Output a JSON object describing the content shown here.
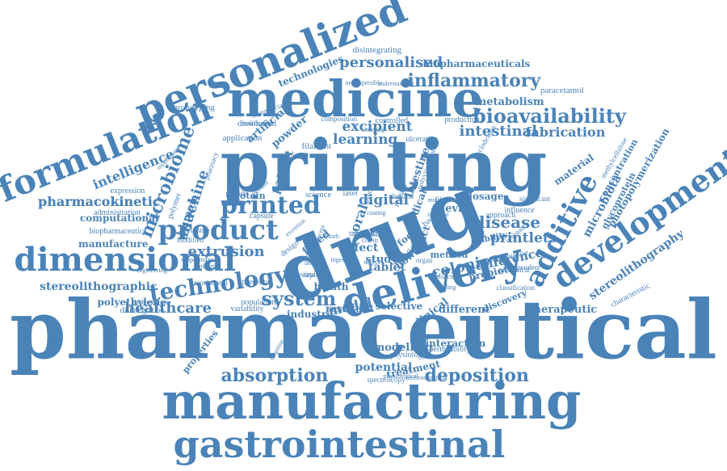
{
  "color": "#4a83b8",
  "words": [
    {
      "text": "pharmaceutical"
    },
    {
      "text": "manufacturing"
    },
    {
      "text": "gastrointestinal"
    },
    {
      "text": "printing"
    },
    {
      "text": "drug"
    },
    {
      "text": "medicine"
    },
    {
      "text": "delivery"
    },
    {
      "text": "personalized"
    },
    {
      "text": "formulation"
    },
    {
      "text": "dimensional"
    },
    {
      "text": "product"
    },
    {
      "text": "development"
    },
    {
      "text": "additive"
    },
    {
      "text": "printed"
    },
    {
      "text": "technology"
    },
    {
      "text": "bioavailability"
    },
    {
      "text": "inflammatory"
    },
    {
      "text": "absorption"
    },
    {
      "text": "deposition"
    },
    {
      "text": "system"
    },
    {
      "text": "disease"
    },
    {
      "text": "healthcare"
    },
    {
      "text": "extrusion"
    },
    {
      "text": "printlets"
    },
    {
      "text": "microbiome"
    },
    {
      "text": "personalised"
    },
    {
      "text": "intestinal"
    },
    {
      "text": "fabrication"
    },
    {
      "text": "metabolism"
    },
    {
      "text": "stereolithographic"
    },
    {
      "text": "stereolithography"
    },
    {
      "text": "pharmacokinetic"
    },
    {
      "text": "polyethylene"
    },
    {
      "text": "biopharmaceuticals"
    },
    {
      "text": "excipient"
    },
    {
      "text": "learning"
    },
    {
      "text": "intelligence"
    },
    {
      "text": "machine"
    },
    {
      "text": "digital"
    },
    {
      "text": "colonic"
    },
    {
      "text": "difference"
    },
    {
      "text": "device"
    },
    {
      "text": "material"
    },
    {
      "text": "microbiota"
    },
    {
      "text": "photopolymerization"
    },
    {
      "text": "concentration"
    },
    {
      "text": "glycoprotein"
    },
    {
      "text": "technologies"
    },
    {
      "text": "manufacture"
    },
    {
      "text": "computational"
    },
    {
      "text": "administration"
    },
    {
      "text": "expression"
    },
    {
      "text": "biopharmaceutics"
    },
    {
      "text": "prototyping"
    },
    {
      "text": "dissolution"
    },
    {
      "text": "filament"
    },
    {
      "text": "ulcerative"
    },
    {
      "text": "controlled"
    },
    {
      "text": "paracetamol"
    },
    {
      "text": "effect"
    },
    {
      "text": "tablet"
    },
    {
      "text": "modelling"
    },
    {
      "text": "interaction"
    },
    {
      "text": "potential"
    },
    {
      "text": "treatment"
    },
    {
      "text": "different"
    },
    {
      "text": "therapeutic"
    },
    {
      "text": "industry"
    },
    {
      "text": "model"
    },
    {
      "text": "clinical"
    },
    {
      "text": "study"
    },
    {
      "text": "health"
    },
    {
      "text": "properties"
    },
    {
      "text": "pharmacokinetic"
    },
    {
      "text": "dosage"
    },
    {
      "text": "probiotic"
    },
    {
      "text": "method"
    },
    {
      "text": "discovery"
    },
    {
      "text": "disintegrating"
    },
    {
      "text": "protein"
    },
    {
      "text": "capsule"
    },
    {
      "text": "science"
    },
    {
      "text": "laser"
    },
    {
      "text": "human"
    },
    {
      "text": "polymer"
    },
    {
      "text": "patient"
    },
    {
      "text": "powder"
    },
    {
      "text": "application"
    },
    {
      "text": "artificial"
    },
    {
      "text": "composition"
    },
    {
      "text": "production"
    },
    {
      "text": "influence"
    },
    {
      "text": "approach"
    },
    {
      "text": "significant"
    },
    {
      "text": "stability"
    },
    {
      "text": "selective"
    },
    {
      "text": "resistant"
    },
    {
      "text": "spectroscopy"
    },
    {
      "text": "physiology"
    },
    {
      "text": "permeability"
    },
    {
      "text": "progesterone"
    },
    {
      "text": "disintegration"
    },
    {
      "text": "variability"
    },
    {
      "text": "translational"
    },
    {
      "text": "precision"
    },
    {
      "text": "population"
    },
    {
      "text": "characteristic"
    },
    {
      "text": "methylcellulose"
    },
    {
      "text": "colon"
    },
    {
      "text": "rapid"
    },
    {
      "text": "commercial"
    },
    {
      "text": "modification"
    },
    {
      "text": "orodispersible"
    },
    {
      "text": "understanding"
    },
    {
      "text": "sintering"
    },
    {
      "text": "engineering"
    },
    {
      "text": "physiological"
    },
    {
      "text": "electrochemical"
    },
    {
      "text": "targeting"
    },
    {
      "text": "fused"
    },
    {
      "text": "oral"
    },
    {
      "text": "food"
    },
    {
      "text": "tract"
    },
    {
      "text": "bowel"
    },
    {
      "text": "prediction"
    },
    {
      "text": "release"
    },
    {
      "text": "gastric"
    },
    {
      "text": "intestine"
    },
    {
      "text": "medical"
    },
    {
      "text": "destructive"
    },
    {
      "text": "preclinical"
    },
    {
      "text": "dependent"
    },
    {
      "text": "classification"
    },
    {
      "text": "resistance"
    },
    {
      "text": "polyvinylalcohol"
    },
    {
      "text": "cyclodextrin"
    },
    {
      "text": "pharmacy"
    },
    {
      "text": "response"
    },
    {
      "text": "modified"
    },
    {
      "text": "review"
    },
    {
      "text": "novel"
    },
    {
      "text": "design"
    },
    {
      "text": "solid"
    },
    {
      "text": "direct"
    },
    {
      "text": "bacteria"
    },
    {
      "text": "data"
    },
    {
      "text": "demand"
    },
    {
      "text": "organ"
    },
    {
      "text": "film"
    },
    {
      "text": "peptide"
    },
    {
      "text": "female"
    },
    {
      "text": "supplement"
    },
    {
      "text": "mucosal"
    },
    {
      "text": "ileal"
    },
    {
      "text": "coating"
    },
    {
      "text": "infusion"
    },
    {
      "text": "biology"
    },
    {
      "text": "ingestion"
    },
    {
      "text": "process"
    },
    {
      "text": "absorb"
    },
    {
      "text": "antibiotic"
    },
    {
      "text": "suppositories"
    },
    {
      "text": "excretion"
    },
    {
      "text": "healing"
    },
    {
      "text": "toxicity"
    },
    {
      "text": "mimic"
    },
    {
      "text": "transport"
    }
  ]
}
